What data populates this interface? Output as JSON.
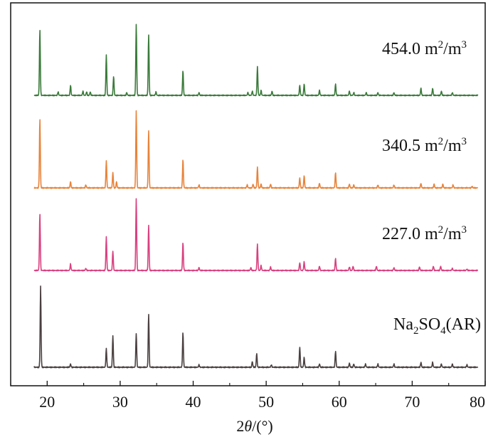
{
  "chart_data": {
    "type": "line",
    "title": "",
    "xlabel_prefix": "2",
    "xlabel_var": "θ",
    "xlabel_suffix": "/(°)",
    "ylabel": "",
    "xlim": [
      15,
      80
    ],
    "x_ticks": [
      20,
      30,
      40,
      50,
      60,
      70,
      80
    ],
    "y_ticks_shown": false,
    "legend": "inline labels at right of each trace",
    "series": [
      {
        "name": "454.0 m²/m³",
        "label": {
          "value": "454.0 m",
          "sup1": "2",
          "mid": "/m",
          "sup2": "3"
        },
        "color": "#3a7a3a",
        "baseline": 0.0,
        "peaks": [
          [
            19.0,
            0.92
          ],
          [
            21.5,
            0.05
          ],
          [
            23.2,
            0.14
          ],
          [
            24.9,
            0.06
          ],
          [
            25.4,
            0.05
          ],
          [
            25.9,
            0.05
          ],
          [
            28.1,
            0.57
          ],
          [
            29.1,
            0.27
          ],
          [
            30.9,
            0.04
          ],
          [
            32.2,
            1.0
          ],
          [
            33.9,
            0.85
          ],
          [
            34.9,
            0.05
          ],
          [
            38.6,
            0.35
          ],
          [
            40.8,
            0.04
          ],
          [
            47.5,
            0.04
          ],
          [
            48.1,
            0.06
          ],
          [
            48.8,
            0.4
          ],
          [
            49.3,
            0.07
          ],
          [
            50.8,
            0.06
          ],
          [
            54.6,
            0.14
          ],
          [
            55.2,
            0.16
          ],
          [
            57.3,
            0.07
          ],
          [
            59.5,
            0.16
          ],
          [
            61.4,
            0.06
          ],
          [
            62.0,
            0.04
          ],
          [
            63.7,
            0.04
          ],
          [
            65.3,
            0.04
          ],
          [
            67.5,
            0.04
          ],
          [
            71.2,
            0.1
          ],
          [
            72.8,
            0.1
          ],
          [
            74.0,
            0.06
          ],
          [
            75.5,
            0.04
          ]
        ]
      },
      {
        "name": "340.5 m²/m³",
        "label": {
          "value": "340.5 m",
          "sup1": "2",
          "mid": "/m",
          "sup2": "3"
        },
        "color": "#e8833a",
        "baseline": 0.0,
        "peaks": [
          [
            19.0,
            0.9
          ],
          [
            23.2,
            0.08
          ],
          [
            25.3,
            0.04
          ],
          [
            28.1,
            0.35
          ],
          [
            29.0,
            0.2
          ],
          [
            29.5,
            0.08
          ],
          [
            32.2,
            1.0
          ],
          [
            33.9,
            0.74
          ],
          [
            38.6,
            0.37
          ],
          [
            40.8,
            0.04
          ],
          [
            47.4,
            0.04
          ],
          [
            48.2,
            0.05
          ],
          [
            48.8,
            0.27
          ],
          [
            49.3,
            0.05
          ],
          [
            50.6,
            0.05
          ],
          [
            54.6,
            0.13
          ],
          [
            55.2,
            0.16
          ],
          [
            57.3,
            0.06
          ],
          [
            59.5,
            0.2
          ],
          [
            61.4,
            0.05
          ],
          [
            62.0,
            0.04
          ],
          [
            65.3,
            0.04
          ],
          [
            67.5,
            0.04
          ],
          [
            71.2,
            0.06
          ],
          [
            73.0,
            0.05
          ],
          [
            74.2,
            0.05
          ],
          [
            75.6,
            0.04
          ],
          [
            78.2,
            0.02
          ]
        ]
      },
      {
        "name": "227.0 m²/m³",
        "label": {
          "value": "227.0 m",
          "sup1": "2",
          "mid": "/m",
          "sup2": "3"
        },
        "color": "#d9407f",
        "baseline": 0.0,
        "peaks": [
          [
            19.0,
            0.79
          ],
          [
            23.2,
            0.09
          ],
          [
            25.3,
            0.03
          ],
          [
            28.1,
            0.47
          ],
          [
            29.0,
            0.27
          ],
          [
            32.2,
            1.0
          ],
          [
            33.9,
            0.63
          ],
          [
            38.6,
            0.39
          ],
          [
            40.8,
            0.04
          ],
          [
            47.9,
            0.04
          ],
          [
            48.8,
            0.37
          ],
          [
            49.3,
            0.07
          ],
          [
            50.6,
            0.05
          ],
          [
            54.6,
            0.11
          ],
          [
            55.2,
            0.12
          ],
          [
            57.3,
            0.06
          ],
          [
            59.5,
            0.17
          ],
          [
            61.4,
            0.05
          ],
          [
            61.9,
            0.06
          ],
          [
            65.1,
            0.06
          ],
          [
            67.5,
            0.04
          ],
          [
            71.0,
            0.05
          ],
          [
            72.9,
            0.06
          ],
          [
            73.9,
            0.06
          ],
          [
            75.5,
            0.03
          ],
          [
            77.5,
            0.02
          ]
        ]
      },
      {
        "name": "Na₂SO₄(AR)",
        "label": {
          "value": "Na",
          "sub1": "2",
          "mid": "SO",
          "sub2": "4",
          "tail": "(AR)"
        },
        "color": "#4a4040",
        "baseline": 0.0,
        "peaks": [
          [
            19.1,
            1.0
          ],
          [
            23.2,
            0.04
          ],
          [
            28.1,
            0.23
          ],
          [
            29.0,
            0.39
          ],
          [
            32.2,
            0.42
          ],
          [
            33.9,
            0.66
          ],
          [
            38.6,
            0.43
          ],
          [
            40.8,
            0.03
          ],
          [
            48.1,
            0.07
          ],
          [
            48.7,
            0.17
          ],
          [
            50.7,
            0.03
          ],
          [
            54.6,
            0.25
          ],
          [
            55.2,
            0.12
          ],
          [
            57.3,
            0.04
          ],
          [
            59.5,
            0.2
          ],
          [
            61.4,
            0.05
          ],
          [
            62.0,
            0.04
          ],
          [
            63.6,
            0.04
          ],
          [
            65.3,
            0.04
          ],
          [
            67.5,
            0.04
          ],
          [
            71.2,
            0.06
          ],
          [
            72.8,
            0.06
          ],
          [
            74.0,
            0.04
          ],
          [
            75.5,
            0.04
          ],
          [
            77.5,
            0.03
          ]
        ]
      }
    ]
  }
}
